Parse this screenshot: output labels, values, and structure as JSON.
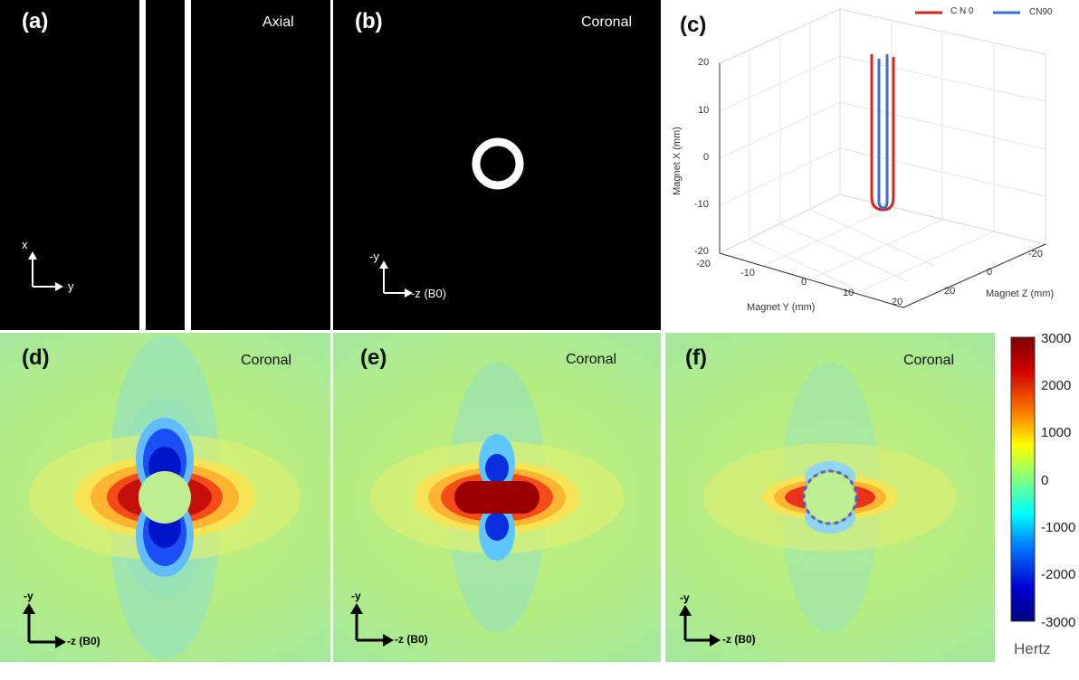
{
  "panels": {
    "a": {
      "label": "(a)",
      "view": "Axial",
      "axis_up": "x",
      "axis_right": "y"
    },
    "b": {
      "label": "(b)",
      "view": "Coronal",
      "axis_up": "-y",
      "axis_right": "-z (B0)"
    },
    "c": {
      "label": "(c)",
      "legend": [
        "C N 0",
        "CN90"
      ],
      "legend_colors": [
        "#d7261e",
        "#3b6fd8"
      ],
      "ylabel": "Magnet X (mm)",
      "xlabel": "Magnet Y (mm)",
      "zlabel": "Magnet Z (mm)",
      "x_ticks": [
        "20",
        "10",
        "0",
        "-10",
        "-20"
      ],
      "y_ticks": [
        "-20",
        "-10",
        "0",
        "10",
        "20"
      ],
      "z_ticks": [
        "-20",
        "0",
        "20"
      ]
    },
    "d": {
      "label": "(d)",
      "view": "Coronal",
      "axis_up": "-y",
      "axis_right": "-z (B0)"
    },
    "e": {
      "label": "(e)",
      "view": "Coronal",
      "axis_up": "-y",
      "axis_right": "-z (B0)"
    },
    "f": {
      "label": "(f)",
      "view": "Coronal",
      "axis_up": "-y",
      "axis_right": "-z (B0)"
    }
  },
  "colorbar": {
    "ticks": [
      "3000",
      "2000",
      "1000",
      "0",
      "-1000",
      "-2000",
      "-3000"
    ],
    "unit": "Hertz"
  }
}
